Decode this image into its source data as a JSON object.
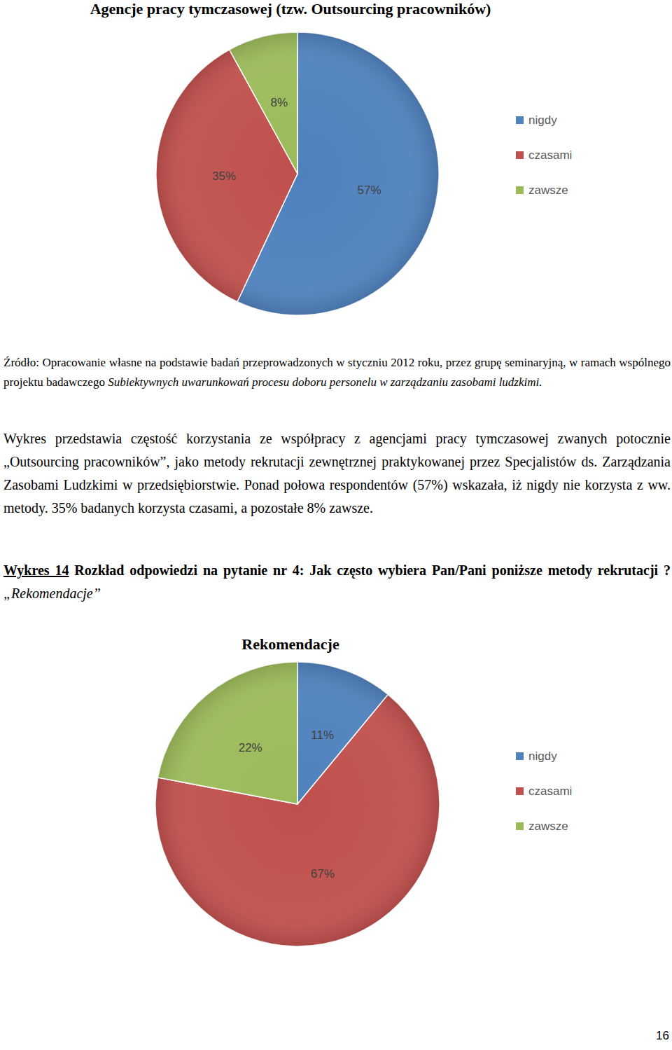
{
  "chart_data": [
    {
      "type": "pie",
      "title": "Agencje pracy tymczasowej (tzw. Outsourcing pracowników)",
      "categories": [
        "nigdy",
        "czasami",
        "zawsze"
      ],
      "values": [
        57,
        35,
        8
      ],
      "value_labels": [
        "57%",
        "35%",
        "8%"
      ],
      "colors": [
        "#4f81bd",
        "#c0504d",
        "#9bbb59"
      ],
      "data_labels": true,
      "legend": "right"
    },
    {
      "type": "pie",
      "title": "Rekomendacje",
      "categories": [
        "nigdy",
        "czasami",
        "zawsze"
      ],
      "values": [
        11,
        67,
        22
      ],
      "value_labels": [
        "11%",
        "67%",
        "22%"
      ],
      "colors": [
        "#4f81bd",
        "#c0504d",
        "#9bbb59"
      ],
      "data_labels": true,
      "legend": "right"
    }
  ],
  "document": {
    "source": {
      "text": "Źródło: Opracowanie własne na podstawie badań przeprowadzonych w styczniu 2012 roku, przez grupę seminaryjną, w ramach wspólnego projektu badawczego",
      "italic": "Subiektywnych uwarunkowań procesu doboru personelu w zarządzaniu zasobami ludzkimi."
    },
    "paragraph": "Wykres przedstawia częstość korzystania ze współpracy z agencjami pracy tymczasowej zwanych potocznie „Outsourcing pracowników”, jako metody rekrutacji zewnętrznej praktykowanej przez Specjalistów ds. Zarządzania Zasobami Ludzkimi w przedsiębiorstwie. Ponad połowa respondentów (57%) wskazała, iż nigdy nie korzysta z ww. metody. 35% badanych korzysta czasami, a pozostałe 8% zawsze.",
    "caption": {
      "label": "Wykres 14",
      "text": "Rozkład odpowiedzi na pytanie nr 4: Jak często wybiera Pan/Pani poniższe metody rekrutacji ?",
      "italic": "„Rekomendacje”"
    },
    "page_number": "16"
  }
}
